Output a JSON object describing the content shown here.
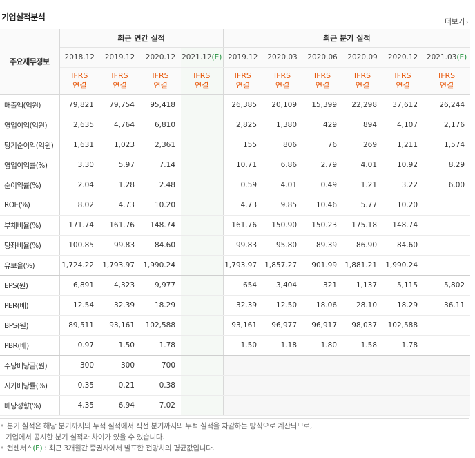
{
  "header": {
    "title": "기업실적분석",
    "more": "더보기"
  },
  "table": {
    "key_header": "주요재무정보",
    "annual_header": "최근 연간 실적",
    "quarter_header": "최근 분기 실적",
    "periods": [
      "2018.12",
      "2019.12",
      "2020.12",
      "2021.12",
      "2019.12",
      "2020.03",
      "2020.06",
      "2020.09",
      "2020.12",
      "2021.03"
    ],
    "est_mark": "(E)",
    "basis_top": "IFRS",
    "basis_bottom": "연결",
    "rows": [
      {
        "label": "매출액(억원)",
        "values": [
          "79,821",
          "79,754",
          "95,418",
          "",
          "26,385",
          "20,109",
          "15,399",
          "22,298",
          "37,612",
          "26,244"
        ]
      },
      {
        "label": "영업이익(억원)",
        "values": [
          "2,635",
          "4,764",
          "6,810",
          "",
          "2,825",
          "1,380",
          "429",
          "894",
          "4,107",
          "2,176"
        ]
      },
      {
        "label": "당기순이익(억원)",
        "values": [
          "1,631",
          "1,023",
          "2,361",
          "",
          "155",
          "806",
          "76",
          "269",
          "1,211",
          "1,574"
        ]
      },
      {
        "label": "영업이익률(%)",
        "values": [
          "3.30",
          "5.97",
          "7.14",
          "",
          "10.71",
          "6.86",
          "2.79",
          "4.01",
          "10.92",
          "8.29"
        ]
      },
      {
        "label": "순이익률(%)",
        "values": [
          "2.04",
          "1.28",
          "2.48",
          "",
          "0.59",
          "4.01",
          "0.49",
          "1.21",
          "3.22",
          "6.00"
        ]
      },
      {
        "label": "ROE(%)",
        "values": [
          "8.02",
          "4.73",
          "10.20",
          "",
          "4.73",
          "9.85",
          "10.46",
          "5.77",
          "10.20",
          ""
        ]
      },
      {
        "label": "부채비율(%)",
        "values": [
          "171.74",
          "161.76",
          "148.74",
          "",
          "161.76",
          "150.90",
          "150.23",
          "175.18",
          "148.74",
          ""
        ]
      },
      {
        "label": "당좌비율(%)",
        "values": [
          "100.85",
          "99.83",
          "84.60",
          "",
          "99.83",
          "95.80",
          "89.39",
          "86.90",
          "84.60",
          ""
        ]
      },
      {
        "label": "유보율(%)",
        "values": [
          "1,724.22",
          "1,793.97",
          "1,990.24",
          "",
          "1,793.97",
          "1,857.27",
          "901.99",
          "1,881.21",
          "1,990.24",
          ""
        ]
      },
      {
        "label": "EPS(원)",
        "values": [
          "6,891",
          "4,323",
          "9,977",
          "",
          "654",
          "3,404",
          "321",
          "1,137",
          "5,115",
          "5,802"
        ]
      },
      {
        "label": "PER(배)",
        "values": [
          "12.54",
          "32.39",
          "18.29",
          "",
          "32.39",
          "12.50",
          "18.06",
          "28.10",
          "18.29",
          "36.11"
        ]
      },
      {
        "label": "BPS(원)",
        "values": [
          "89,511",
          "93,161",
          "102,588",
          "",
          "93,161",
          "96,977",
          "96,917",
          "98,037",
          "102,588",
          ""
        ]
      },
      {
        "label": "PBR(배)",
        "values": [
          "0.97",
          "1.50",
          "1.78",
          "",
          "1.50",
          "1.18",
          "1.80",
          "1.58",
          "1.78",
          ""
        ]
      },
      {
        "label": "주당배당금(원)",
        "values": [
          "300",
          "300",
          "700",
          "",
          "",
          "",
          "",
          "",
          "",
          ""
        ]
      },
      {
        "label": "시가배당률(%)",
        "values": [
          "0.35",
          "0.21",
          "0.38",
          "",
          "",
          "",
          "",
          "",
          "",
          ""
        ]
      },
      {
        "label": "배당성향(%)",
        "values": [
          "4.35",
          "6.94",
          "7.02",
          "",
          "",
          "",
          "",
          "",
          "",
          ""
        ]
      }
    ]
  },
  "notes": {
    "line1": "분기 실적은 해당 분기까지의 누적 실적에서 직전 분기까지의 누적 실적을 차감하는 방식으로 계산되므로,",
    "line2": "기업에서 공시한 분기 실적과 차이가 있을 수 있습니다.",
    "line3a": "컨센서스",
    "line3b": "(E)",
    "line3c": ": 최근 3개월간 증권사에서 발표한 전망치의 평균값입니다."
  }
}
